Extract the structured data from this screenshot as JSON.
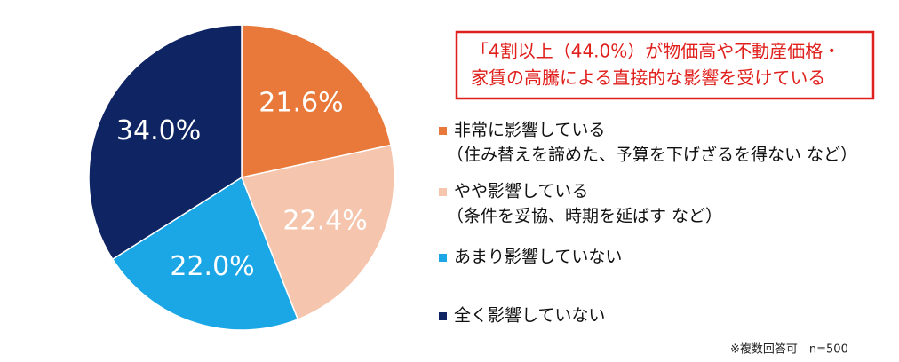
{
  "chart_data": {
    "type": "pie",
    "categories": [
      "非常に影響している",
      "やや影響している",
      "あまり影響していない",
      "全く影響していない"
    ],
    "category_notes": [
      "（住み替えを諦めた、予算を下げざるを得ない など）",
      "（条件を妥協、時期を延ばす など）",
      null,
      null
    ],
    "values": [
      21.6,
      22.4,
      22.0,
      34.0
    ],
    "value_labels": [
      "21.6%",
      "22.4%",
      "22.0%",
      "34.0%"
    ],
    "colors": [
      "#e8793a",
      "#f5c5ad",
      "#1ba6e6",
      "#0e2463"
    ],
    "annotation": [
      "「4割以上（44.0%）が物価高や不動産価格・",
      "家賃の高騰による直接的な影響を受けている"
    ],
    "footnote": "※複数回答可　n=500"
  }
}
